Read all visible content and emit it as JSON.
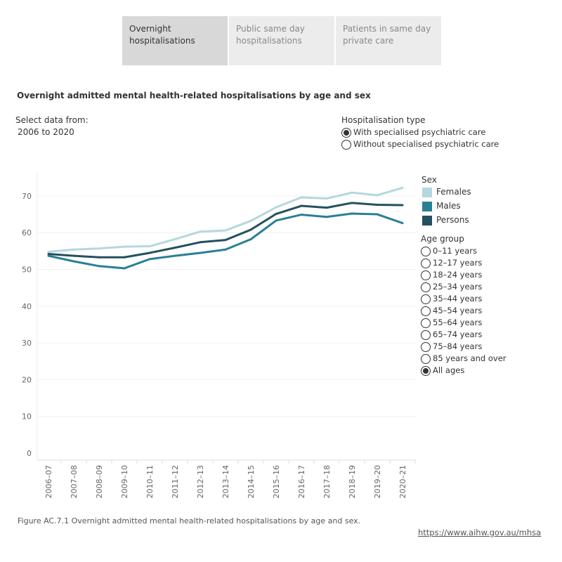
{
  "tabs": [
    {
      "label": "Overnight hospitalisations",
      "active": true
    },
    {
      "label": "Public same day hospitalisations",
      "active": false
    },
    {
      "label": "Patients in same day private care",
      "active": false
    }
  ],
  "title": "Overnight admitted mental health-related hospitalisations by age and sex",
  "select_label": "Select data from:",
  "select_value": "2006 to 2020",
  "hosp_type": {
    "label": "Hospitalisation type",
    "options": [
      {
        "label": "With specialised psychiatric care",
        "selected": true
      },
      {
        "label": "Without specialised psychiatric care",
        "selected": false
      }
    ]
  },
  "legend": {
    "title": "Sex",
    "items": [
      {
        "label": "Females",
        "color": "#b5d7df"
      },
      {
        "label": "Males",
        "color": "#2a7f97"
      },
      {
        "label": "Persons",
        "color": "#24505f"
      }
    ]
  },
  "age_group": {
    "label": "Age group",
    "options": [
      {
        "label": "0–11 years",
        "selected": false
      },
      {
        "label": "12–17 years",
        "selected": false
      },
      {
        "label": "18–24 years",
        "selected": false
      },
      {
        "label": "25–34 years",
        "selected": false
      },
      {
        "label": "35–44 years",
        "selected": false
      },
      {
        "label": "45–54 years",
        "selected": false
      },
      {
        "label": "55–64 years",
        "selected": false
      },
      {
        "label": "65–74 years",
        "selected": false
      },
      {
        "label": "75–84 years",
        "selected": false
      },
      {
        "label": "85 years and over",
        "selected": false
      },
      {
        "label": "All ages",
        "selected": true
      }
    ]
  },
  "caption": "Figure AC.7.1 Overnight admitted mental health-related hospitalisations by age and sex.",
  "link": "https://www.aihw.gov.au/mhsa",
  "chart_data": {
    "type": "line",
    "categories": [
      "2006–07",
      "2007–08",
      "2008–09",
      "2009–10",
      "2010–11",
      "2011–12",
      "2012–13",
      "2013–14",
      "2014–15",
      "2015–16",
      "2016–17",
      "2017–18",
      "2018–19",
      "2019–20",
      "2020–21"
    ],
    "yticks": [
      0,
      10,
      20,
      30,
      40,
      50,
      60,
      70
    ],
    "ylim": [
      0,
      75
    ],
    "grid": true,
    "legend_placement": "right",
    "series": [
      {
        "name": "Females",
        "color": "#b5d7df",
        "values": [
          54.8,
          55.4,
          55.7,
          56.2,
          56.3,
          58.2,
          60.3,
          60.6,
          63.2,
          66.9,
          69.6,
          69.3,
          70.9,
          70.2,
          72.2
        ]
      },
      {
        "name": "Males",
        "color": "#2a7f97",
        "values": [
          53.7,
          52.2,
          50.9,
          50.3,
          52.8,
          53.7,
          54.5,
          55.4,
          58.2,
          63.3,
          64.9,
          64.3,
          65.2,
          65.0,
          62.6
        ]
      },
      {
        "name": "Persons",
        "color": "#24505f",
        "values": [
          54.2,
          53.7,
          53.3,
          53.3,
          54.5,
          55.9,
          57.4,
          58.0,
          60.8,
          65.1,
          67.3,
          66.8,
          68.1,
          67.6,
          67.5
        ]
      }
    ]
  }
}
